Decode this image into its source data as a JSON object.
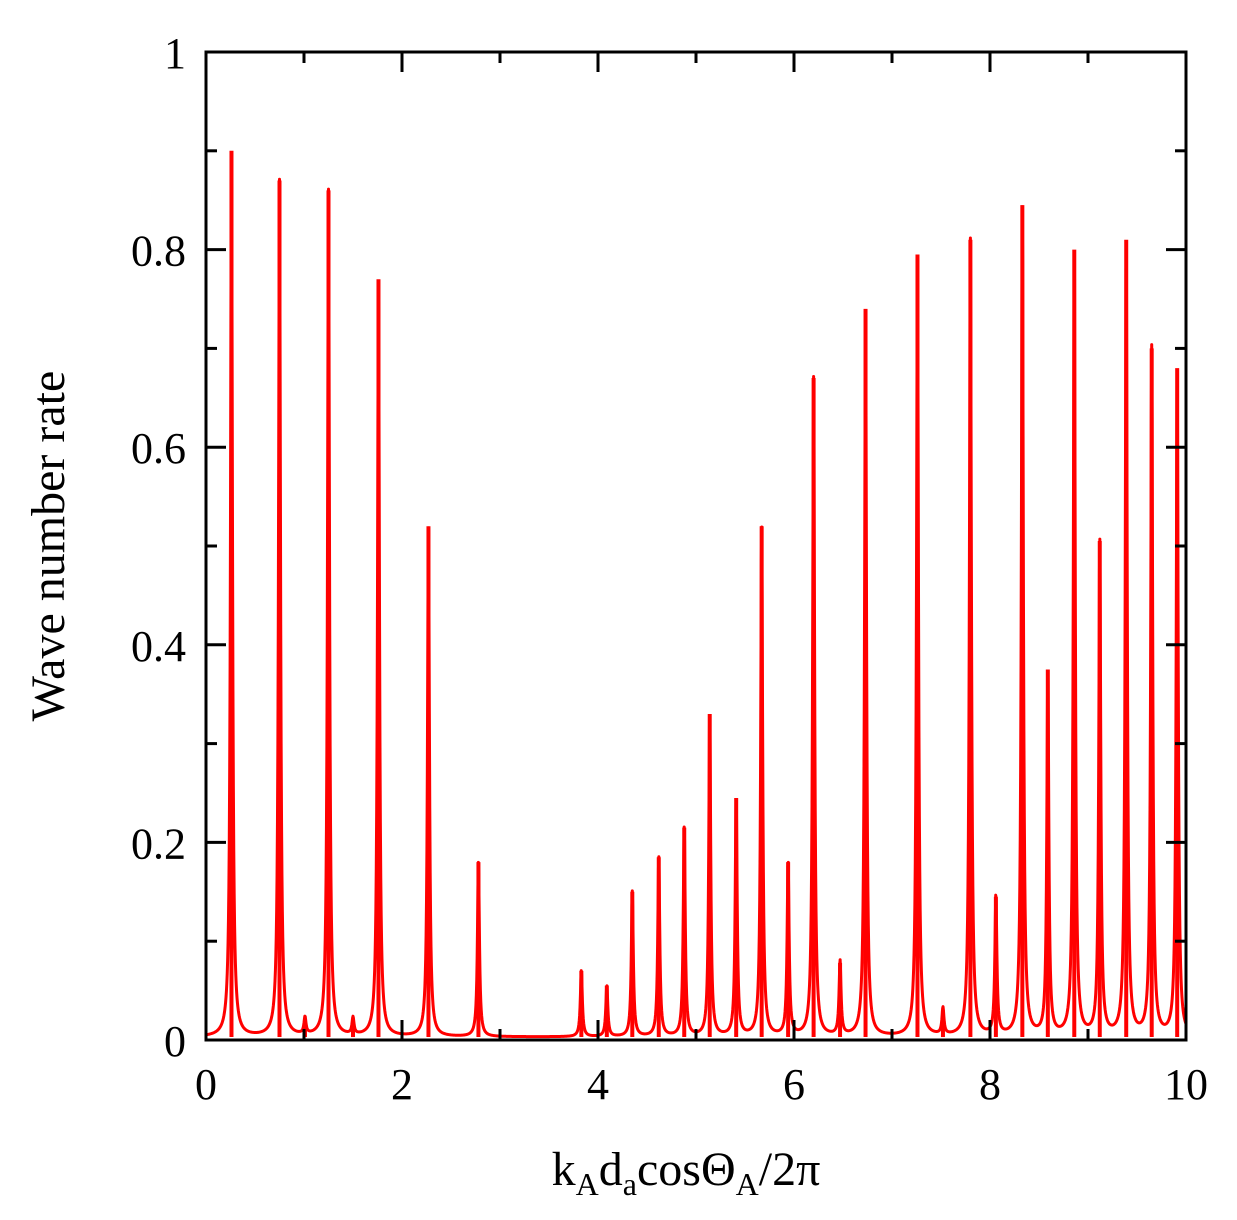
{
  "chart_data": {
    "type": "line",
    "title": "",
    "xlabel": "kAdacosΘA/2π",
    "xlabel_parts": [
      {
        "text": "k",
        "sub": false
      },
      {
        "text": "A",
        "sub": true
      },
      {
        "text": "d",
        "sub": false
      },
      {
        "text": "a",
        "sub": true
      },
      {
        "text": "cosΘ",
        "sub": false
      },
      {
        "text": "A",
        "sub": true
      },
      {
        "text": "/2π",
        "sub": false
      }
    ],
    "ylabel": "Wave number rate",
    "xlim": [
      0,
      10
    ],
    "ylim": [
      0,
      1
    ],
    "xticks": [
      0,
      2,
      4,
      6,
      8,
      10
    ],
    "xtick_labels": [
      "0",
      "2",
      "4",
      "6",
      "8",
      "10"
    ],
    "yticks": [
      0,
      0.2,
      0.4,
      0.6,
      0.8,
      1
    ],
    "ytick_labels": [
      "0",
      "0.2",
      "0.4",
      "0.6",
      "0.8",
      "1"
    ],
    "grid": false,
    "legend": "none",
    "series": [
      {
        "color": "#ff0000",
        "baseline": 0.003,
        "peaks": [
          {
            "x": 0.26,
            "y": 0.9
          },
          {
            "x": 0.75,
            "y": 0.87
          },
          {
            "x": 1.01,
            "y": 0.02
          },
          {
            "x": 1.25,
            "y": 0.86
          },
          {
            "x": 1.5,
            "y": 0.02
          },
          {
            "x": 1.76,
            "y": 0.77
          },
          {
            "x": 2.27,
            "y": 0.52
          },
          {
            "x": 2.78,
            "y": 0.18
          },
          {
            "x": 3.83,
            "y": 0.07
          },
          {
            "x": 4.09,
            "y": 0.055
          },
          {
            "x": 4.35,
            "y": 0.15
          },
          {
            "x": 4.62,
            "y": 0.185
          },
          {
            "x": 4.88,
            "y": 0.215
          },
          {
            "x": 5.14,
            "y": 0.33
          },
          {
            "x": 5.41,
            "y": 0.245
          },
          {
            "x": 5.67,
            "y": 0.52
          },
          {
            "x": 5.94,
            "y": 0.18
          },
          {
            "x": 6.2,
            "y": 0.67
          },
          {
            "x": 6.47,
            "y": 0.078
          },
          {
            "x": 6.73,
            "y": 0.74
          },
          {
            "x": 7.26,
            "y": 0.795
          },
          {
            "x": 7.52,
            "y": 0.03
          },
          {
            "x": 7.8,
            "y": 0.81
          },
          {
            "x": 8.06,
            "y": 0.145
          },
          {
            "x": 8.33,
            "y": 0.845
          },
          {
            "x": 8.59,
            "y": 0.375
          },
          {
            "x": 8.86,
            "y": 0.8
          },
          {
            "x": 9.12,
            "y": 0.505
          },
          {
            "x": 9.39,
            "y": 0.81
          },
          {
            "x": 9.65,
            "y": 0.7
          },
          {
            "x": 9.91,
            "y": 0.68
          }
        ]
      }
    ]
  }
}
